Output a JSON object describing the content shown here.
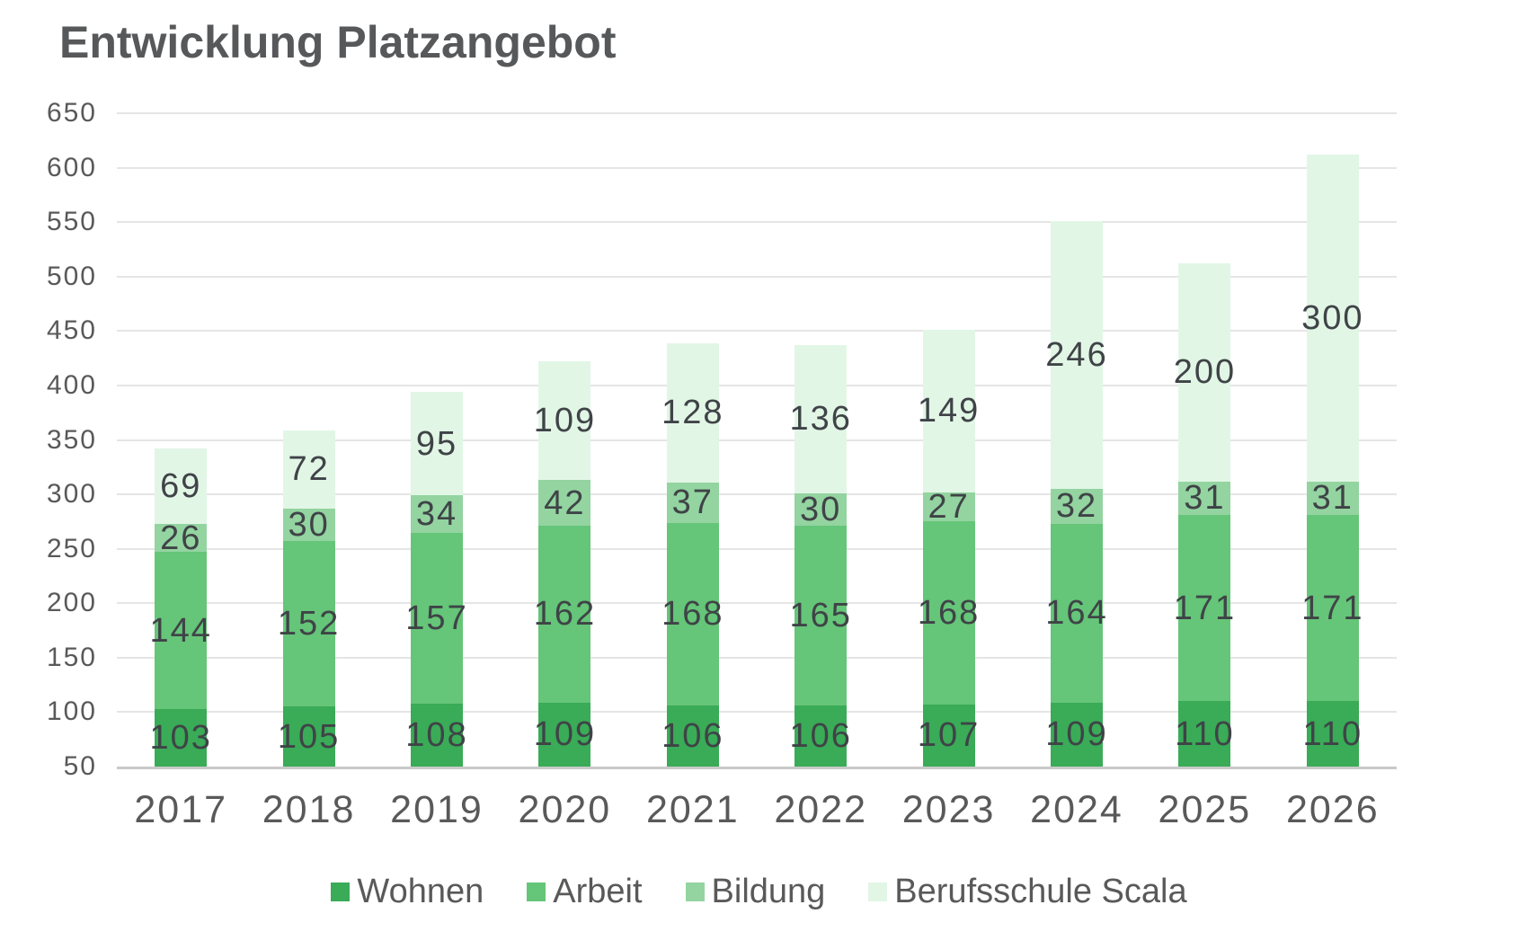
{
  "chart_data": {
    "type": "bar",
    "stacked": true,
    "title": "Entwicklung Platzangebot",
    "categories": [
      "2017",
      "2018",
      "2019",
      "2020",
      "2021",
      "2022",
      "2023",
      "2024",
      "2025",
      "2026"
    ],
    "series": [
      {
        "name": "Wohnen",
        "color": "#3aab57",
        "values": [
          103,
          105,
          108,
          109,
          106,
          106,
          107,
          109,
          110,
          110
        ]
      },
      {
        "name": "Arbeit",
        "color": "#65c578",
        "values": [
          144,
          152,
          157,
          162,
          168,
          165,
          168,
          164,
          171,
          171
        ]
      },
      {
        "name": "Bildung",
        "color": "#93d4a0",
        "values": [
          26,
          30,
          34,
          42,
          37,
          30,
          27,
          32,
          31,
          31
        ]
      },
      {
        "name": "Berufsschule Scala",
        "color": "#e2f6e6",
        "values": [
          69,
          72,
          95,
          109,
          128,
          136,
          149,
          246,
          200,
          300
        ]
      }
    ],
    "totals": [
      342,
      359,
      394,
      422,
      439,
      437,
      451,
      551,
      512,
      612
    ],
    "ylim": [
      50,
      650
    ],
    "yticks": [
      650,
      600,
      550,
      500,
      450,
      400,
      350,
      300,
      250,
      200,
      150,
      100,
      50
    ],
    "xlabel": "",
    "ylabel": "",
    "grid": true,
    "legend_position": "bottom",
    "data_labels": true
  },
  "style": {
    "title_color": "#57585a",
    "axis_text_color": "#595959",
    "label_color": "#3f4347",
    "gridline_color": "#e5e5e5",
    "baseline_color": "#c9c9c9",
    "background": "#ffffff"
  }
}
